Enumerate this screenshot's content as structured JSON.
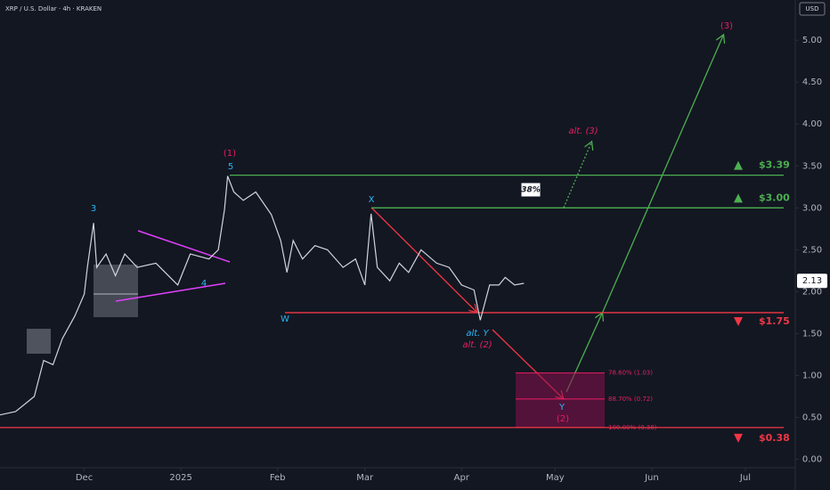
{
  "chart_data": {
    "type": "line",
    "title": "XRP / U.S. Dollar · 4h · KRAKEN",
    "unit": "USD",
    "color": "#d1d4dc",
    "x": [
      3,
      8,
      14,
      17,
      20,
      23,
      27,
      30,
      31,
      33,
      34,
      37,
      40,
      43,
      47,
      53,
      60,
      64,
      70,
      73,
      75,
      76,
      78,
      81,
      85,
      90,
      93,
      95,
      97,
      100,
      104,
      108,
      113,
      117,
      120,
      122,
      124,
      128,
      131,
      134,
      138,
      143,
      147,
      151,
      155,
      157,
      160,
      163,
      165,
      168,
      171
    ],
    "values": [
      0.53,
      0.57,
      0.75,
      1.18,
      1.13,
      1.44,
      1.71,
      1.97,
      2.29,
      2.82,
      2.29,
      2.45,
      2.19,
      2.45,
      2.29,
      2.34,
      2.08,
      2.45,
      2.39,
      2.5,
      2.98,
      3.38,
      3.19,
      3.09,
      3.19,
      2.92,
      2.61,
      2.23,
      2.61,
      2.39,
      2.55,
      2.5,
      2.29,
      2.39,
      2.08,
      2.93,
      2.29,
      2.13,
      2.34,
      2.23,
      2.5,
      2.34,
      2.29,
      2.08,
      2.02,
      1.66,
      2.08,
      2.08,
      2.17,
      2.08,
      2.1
    ],
    "xlim": [
      3,
      258
    ],
    "ylim": [
      -0.1,
      5.48
    ],
    "xticks": [
      {
        "value": 30,
        "label": "Dec"
      },
      {
        "value": 61,
        "label": "2025"
      },
      {
        "value": 92,
        "label": "Feb"
      },
      {
        "value": 120,
        "label": "Mar"
      },
      {
        "value": 151,
        "label": "Apr"
      },
      {
        "value": 181,
        "label": "May"
      },
      {
        "value": 212,
        "label": "Jun"
      },
      {
        "value": 242,
        "label": "Jul"
      }
    ],
    "yticks": [
      {
        "value": 0,
        "label": "0.00"
      },
      {
        "value": 0.5,
        "label": "0.50"
      },
      {
        "value": 1,
        "label": "1.00"
      },
      {
        "value": 1.5,
        "label": "1.50"
      },
      {
        "value": 2,
        "label": "2.00"
      },
      {
        "value": 2.5,
        "label": "2.50"
      },
      {
        "value": 3,
        "label": "3.00"
      },
      {
        "value": 3.5,
        "label": "3.50"
      },
      {
        "value": 4,
        "label": "4.00"
      },
      {
        "value": 4.5,
        "label": "4.50"
      },
      {
        "value": 5,
        "label": "5.00"
      }
    ],
    "grid": false,
    "last_price": 2.13,
    "levels": [
      {
        "value": 3.39,
        "label": "$3.39",
        "color": "#4caf50",
        "direction": "up"
      },
      {
        "value": 3.0,
        "label": "$3.00",
        "color": "#4caf50",
        "direction": "up"
      },
      {
        "value": 1.75,
        "label": "$1.75",
        "color": "#f23645",
        "direction": "down"
      },
      {
        "value": 0.38,
        "label": "$0.38",
        "color": "#f23645",
        "direction": "down"
      }
    ],
    "fib": [
      {
        "value": 1.03,
        "label": "78.60% (1.03)"
      },
      {
        "value": 0.72,
        "label": "88.70% (0.72)"
      },
      {
        "value": 0.38,
        "label": "100.00% (0.38)"
      }
    ],
    "retracement": "38%",
    "annotations": [
      {
        "text": "3",
        "color": "#29b6f6"
      },
      {
        "text": "4",
        "color": "#29b6f6"
      },
      {
        "text": "5",
        "color": "#29b6f6"
      },
      {
        "text": "(1)",
        "color": "#e91e63"
      },
      {
        "text": "W",
        "color": "#29b6f6"
      },
      {
        "text": "X",
        "color": "#29b6f6"
      },
      {
        "text": "alt. Y",
        "color": "#29b6f6"
      },
      {
        "text": "alt. (2)",
        "color": "#e91e63"
      },
      {
        "text": "Y",
        "color": "#29b6f6"
      },
      {
        "text": "(2)",
        "color": "#e91e63"
      },
      {
        "text": "(3)",
        "color": "#e91e63"
      },
      {
        "text": "alt. (3)",
        "color": "#e91e63"
      }
    ]
  }
}
